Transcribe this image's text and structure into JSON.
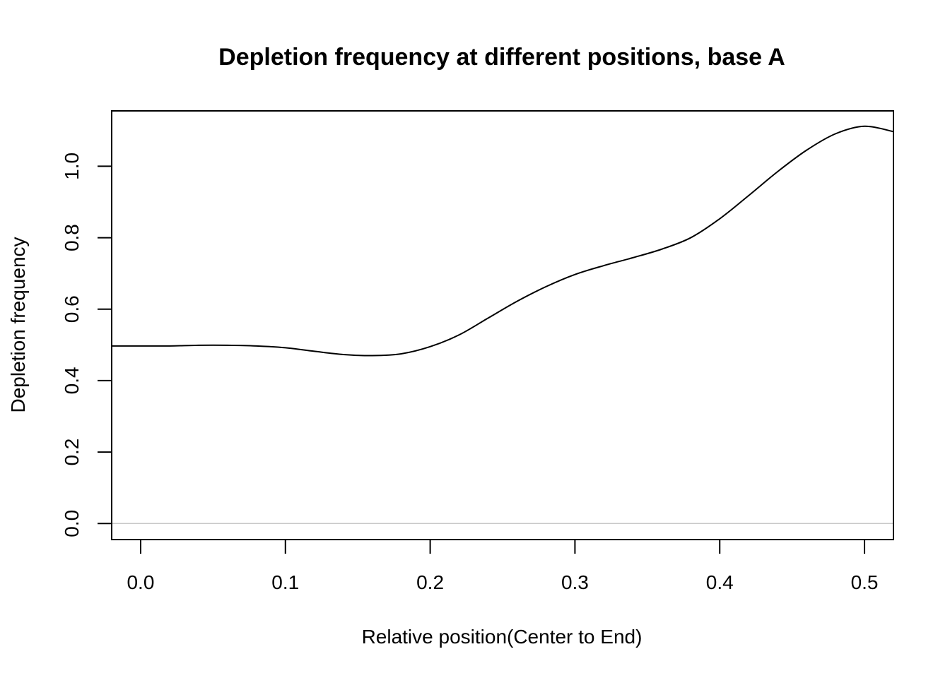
{
  "chart_data": {
    "type": "line",
    "title": "Depletion frequency at different positions, base A",
    "xlabel": "Relative position(Center to End)",
    "ylabel": "Depletion frequency",
    "xlim": [
      -0.02,
      0.52
    ],
    "ylim": [
      -0.045,
      1.155
    ],
    "x_ticks": [
      "0.0",
      "0.1",
      "0.2",
      "0.3",
      "0.4",
      "0.5"
    ],
    "y_ticks": [
      "0.0",
      "0.2",
      "0.4",
      "0.6",
      "0.8",
      "1.0"
    ],
    "reference_line": {
      "y": 0,
      "color": "#c8c8c8"
    },
    "line_color": "#000000",
    "grid": false,
    "series": [
      {
        "x": [
          -0.02,
          0.0,
          0.02,
          0.04,
          0.06,
          0.08,
          0.1,
          0.12,
          0.14,
          0.16,
          0.18,
          0.2,
          0.22,
          0.24,
          0.26,
          0.28,
          0.3,
          0.32,
          0.34,
          0.36,
          0.38,
          0.4,
          0.42,
          0.44,
          0.46,
          0.48,
          0.5,
          0.52
        ],
        "values": [
          0.497,
          0.497,
          0.497,
          0.499,
          0.499,
          0.497,
          0.492,
          0.482,
          0.473,
          0.47,
          0.475,
          0.495,
          0.528,
          0.575,
          0.622,
          0.663,
          0.697,
          0.722,
          0.744,
          0.768,
          0.8,
          0.853,
          0.918,
          0.985,
          1.045,
          1.091,
          1.112,
          1.097
        ]
      }
    ]
  }
}
